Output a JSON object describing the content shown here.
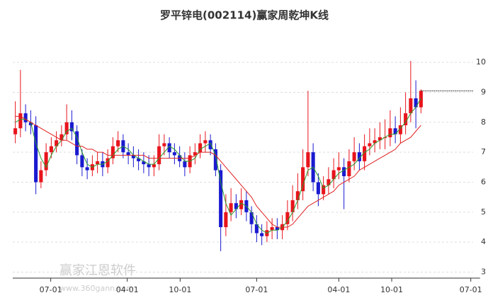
{
  "chart_data": {
    "type": "candlestick",
    "title": "罗平锌电(002114)赢家周乾坤K线",
    "watermark": "赢家江恩软件",
    "watermark_url": "www.360gann.com",
    "up_color": "#e8141c",
    "down_color": "#1a1ad0",
    "open": [
      7.6,
      7.8,
      8.3,
      8.0,
      7.9,
      6.0,
      6.4,
      7.0,
      7.2,
      7.4,
      7.6,
      8.0,
      7.7,
      6.9,
      6.5,
      6.4,
      6.6,
      6.7,
      6.5,
      6.8,
      7.2,
      7.4,
      7.0,
      6.9,
      6.8,
      6.7,
      6.6,
      6.5,
      6.6,
      7.2,
      7.3,
      7.0,
      6.9,
      6.7,
      6.5,
      6.9,
      7.0,
      7.3,
      7.4,
      7.1,
      6.4,
      4.5,
      5.0,
      5.3,
      5.1,
      5.4,
      5.0,
      4.6,
      4.3,
      4.2,
      4.4,
      4.5,
      4.4,
      4.6,
      5.0,
      5.4,
      5.7,
      6.5,
      7.0,
      6.0,
      5.6,
      5.9,
      6.1,
      6.4,
      6.5,
      6.2,
      6.7,
      7.0,
      6.7,
      7.2,
      7.3,
      7.4,
      7.5,
      7.5,
      7.8,
      7.6,
      7.9,
      8.3,
      8.8,
      8.5
    ],
    "high": [
      8.7,
      9.75,
      8.6,
      8.4,
      8.2,
      6.7,
      7.3,
      7.5,
      7.7,
      7.9,
      8.6,
      8.4,
      7.9,
      7.1,
      6.8,
      6.9,
      7.0,
      7.0,
      7.1,
      7.5,
      7.7,
      7.6,
      7.3,
      7.2,
      7.1,
      7.0,
      6.9,
      6.9,
      7.6,
      7.6,
      7.5,
      7.3,
      7.2,
      7.0,
      7.2,
      7.3,
      7.6,
      7.7,
      7.6,
      7.3,
      6.6,
      5.6,
      5.8,
      5.6,
      5.8,
      5.7,
      5.2,
      4.9,
      4.6,
      4.7,
      4.8,
      4.8,
      4.9,
      5.4,
      5.9,
      6.3,
      7.1,
      9.05,
      7.3,
      6.3,
      6.2,
      6.5,
      6.8,
      7.0,
      6.8,
      7.1,
      7.5,
      7.3,
      7.6,
      7.8,
      7.8,
      8.0,
      8.1,
      8.4,
      8.2,
      8.5,
      9.0,
      10.05,
      9.4,
      9.1
    ],
    "low": [
      7.3,
      7.5,
      7.7,
      7.6,
      5.6,
      5.8,
      6.2,
      6.8,
      7.0,
      7.2,
      7.4,
      7.4,
      6.6,
      6.2,
      6.1,
      6.2,
      6.3,
      6.2,
      6.3,
      6.6,
      7.0,
      6.8,
      6.6,
      6.5,
      6.4,
      6.3,
      6.2,
      6.2,
      6.4,
      6.9,
      6.8,
      6.6,
      6.5,
      6.2,
      6.3,
      6.6,
      6.8,
      7.0,
      6.9,
      6.2,
      3.7,
      4.2,
      4.7,
      4.8,
      4.9,
      4.7,
      4.3,
      4.0,
      3.9,
      4.0,
      4.1,
      4.1,
      4.1,
      4.4,
      4.7,
      5.1,
      5.4,
      6.2,
      5.7,
      5.2,
      5.4,
      5.6,
      5.8,
      6.1,
      5.1,
      6.0,
      6.4,
      6.4,
      6.4,
      6.9,
      7.0,
      7.1,
      7.1,
      7.2,
      7.3,
      7.3,
      7.6,
      8.0,
      7.8,
      8.3
    ],
    "close": [
      7.8,
      8.3,
      8.0,
      7.9,
      6.0,
      6.4,
      7.0,
      7.2,
      7.4,
      7.6,
      8.0,
      7.7,
      6.9,
      6.5,
      6.4,
      6.6,
      6.7,
      6.5,
      6.8,
      7.2,
      7.4,
      7.0,
      6.9,
      6.8,
      6.7,
      6.6,
      6.5,
      6.6,
      7.2,
      7.3,
      7.0,
      6.9,
      6.7,
      6.5,
      6.9,
      7.0,
      7.3,
      7.4,
      7.1,
      6.4,
      4.5,
      5.0,
      5.3,
      5.1,
      5.4,
      5.0,
      4.6,
      4.3,
      4.2,
      4.4,
      4.5,
      4.4,
      4.6,
      5.0,
      5.4,
      5.7,
      6.5,
      7.0,
      6.0,
      5.6,
      5.9,
      6.1,
      6.4,
      6.5,
      6.2,
      6.7,
      7.0,
      6.7,
      7.2,
      7.3,
      7.4,
      7.5,
      7.5,
      7.8,
      7.6,
      7.9,
      8.3,
      8.8,
      8.5,
      9.05
    ],
    "series": [
      {
        "color": "#2a9a2a",
        "values": [
          8.0,
          8.1,
          8.1,
          8.0,
          7.3,
          6.8,
          6.5,
          6.9,
          7.2,
          7.4,
          7.7,
          7.8,
          7.5,
          7.0,
          6.6,
          6.5,
          6.6,
          6.6,
          6.7,
          6.9,
          7.1,
          7.2,
          7.1,
          6.9,
          6.8,
          6.7,
          6.6,
          6.6,
          6.8,
          7.0,
          7.2,
          7.1,
          6.9,
          6.7,
          6.7,
          6.8,
          7.1,
          7.2,
          7.3,
          6.9,
          6.0,
          5.3,
          4.9,
          5.1,
          5.3,
          5.2,
          5.0,
          4.6,
          4.4,
          4.3,
          4.4,
          4.4,
          4.5,
          4.7,
          5.0,
          5.4,
          5.9,
          6.4,
          6.5,
          6.2,
          5.8,
          5.9,
          6.1,
          6.3,
          6.4,
          6.5,
          6.6,
          6.8,
          7.0,
          7.1,
          7.3,
          7.4,
          7.5,
          7.6,
          7.6,
          7.8,
          8.0,
          8.3,
          8.5,
          8.8
        ]
      },
      {
        "color": "#e02020",
        "values": [
          8.2,
          8.2,
          8.1,
          8.0,
          7.9,
          7.8,
          7.7,
          7.6,
          7.5,
          7.4,
          7.4,
          7.3,
          7.2,
          7.2,
          7.1,
          7.1,
          7.0,
          7.0,
          6.9,
          6.9,
          6.9,
          6.9,
          6.9,
          6.9,
          6.9,
          6.9,
          6.8,
          6.8,
          6.8,
          6.8,
          6.8,
          6.8,
          6.8,
          6.8,
          6.8,
          6.9,
          7.0,
          7.0,
          7.0,
          6.9,
          6.7,
          6.5,
          6.3,
          6.1,
          5.9,
          5.7,
          5.5,
          5.2,
          5.0,
          4.8,
          4.6,
          4.5,
          4.5,
          4.5,
          4.6,
          4.8,
          5.0,
          5.2,
          5.3,
          5.4,
          5.5,
          5.6,
          5.7,
          5.9,
          6.0,
          6.1,
          6.2,
          6.4,
          6.5,
          6.6,
          6.7,
          6.8,
          6.9,
          7.0,
          7.1,
          7.3,
          7.4,
          7.5,
          7.7,
          7.9
        ]
      }
    ],
    "xlim": [
      0,
      91
    ],
    "xticks": [
      {
        "value": 7.4,
        "label": "07-01"
      },
      {
        "value": 22.3,
        "label": "04-01"
      },
      {
        "value": 32.6,
        "label": "10-01"
      },
      {
        "value": 47.5,
        "label": "07-01"
      },
      {
        "value": 63.5,
        "label": "04-01"
      },
      {
        "value": 73.8,
        "label": "10-01"
      },
      {
        "value": 89.2,
        "label": "07-01"
      }
    ],
    "ylim": [
      2.8,
      10.9
    ],
    "yticks": [
      3,
      4,
      5,
      6,
      7,
      8,
      9,
      10
    ],
    "grid": true
  }
}
